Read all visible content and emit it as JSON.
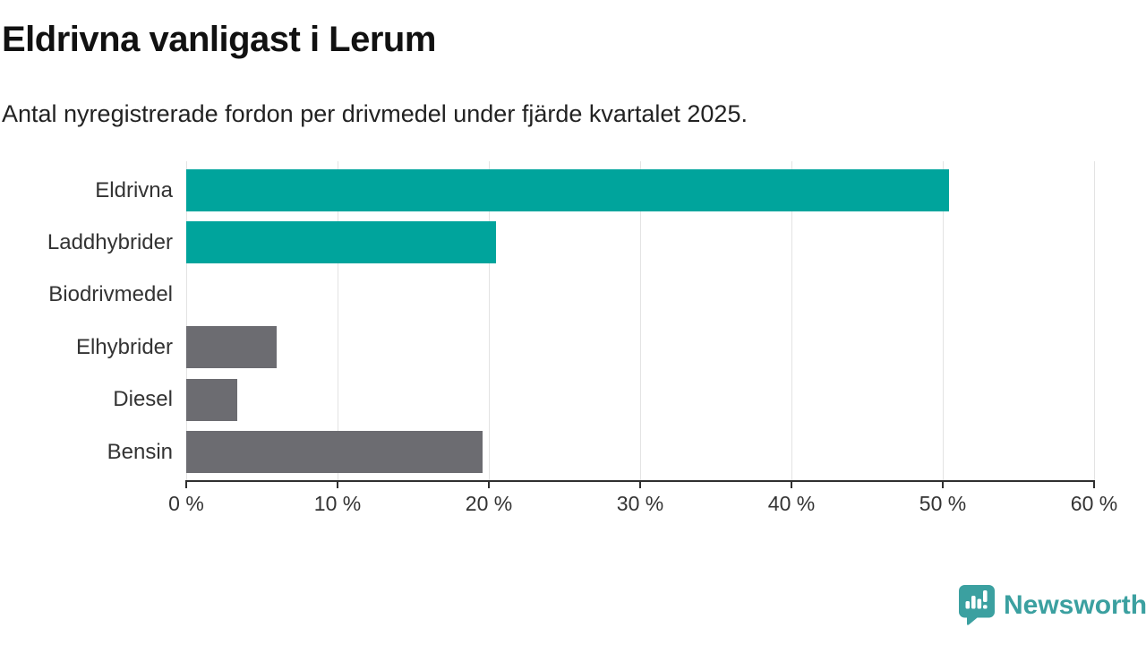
{
  "header": {
    "title": "Eldrivna vanligast i Lerum",
    "subtitle": "Antal nyregistrerade fordon per drivmedel under fjärde kvartalet 2025."
  },
  "chart_data": {
    "type": "bar",
    "orientation": "horizontal",
    "title": "Eldrivna vanligast i Lerum",
    "subtitle": "Antal nyregistrerade fordon per drivmedel under fjärde kvartalet 2025.",
    "categories": [
      "Eldrivna",
      "Laddhybrider",
      "Biodrivmedel",
      "Elhybrider",
      "Diesel",
      "Bensin"
    ],
    "values": [
      50.4,
      20.5,
      0,
      6.0,
      3.4,
      19.6
    ],
    "unit": "%",
    "xlim": [
      0,
      60
    ],
    "xticks": [
      0,
      10,
      20,
      30,
      40,
      50,
      60
    ],
    "xtick_labels": [
      "0 %",
      "10 %",
      "20 %",
      "30 %",
      "40 %",
      "50 %",
      "60 %"
    ],
    "grid": "vertical-gridlines-on",
    "legend": "none",
    "bar_colors": [
      "#00a49c",
      "#00a49c",
      "#6c6c71",
      "#6c6c71",
      "#6c6c71",
      "#6c6c71"
    ],
    "highlight_color": "#00a49c",
    "default_color": "#6c6c71"
  },
  "colors": {
    "background": "#ffffff",
    "gridline": "#e3e3e3",
    "axis": "#2f2f2f",
    "label_text": "#333333",
    "title_text": "#111111"
  },
  "footer": {
    "brand": "Newsworthy",
    "brand_color": "#3ba0a0",
    "logo_icon": "newsworthy-speech-bubble-bar-chart-icon"
  }
}
